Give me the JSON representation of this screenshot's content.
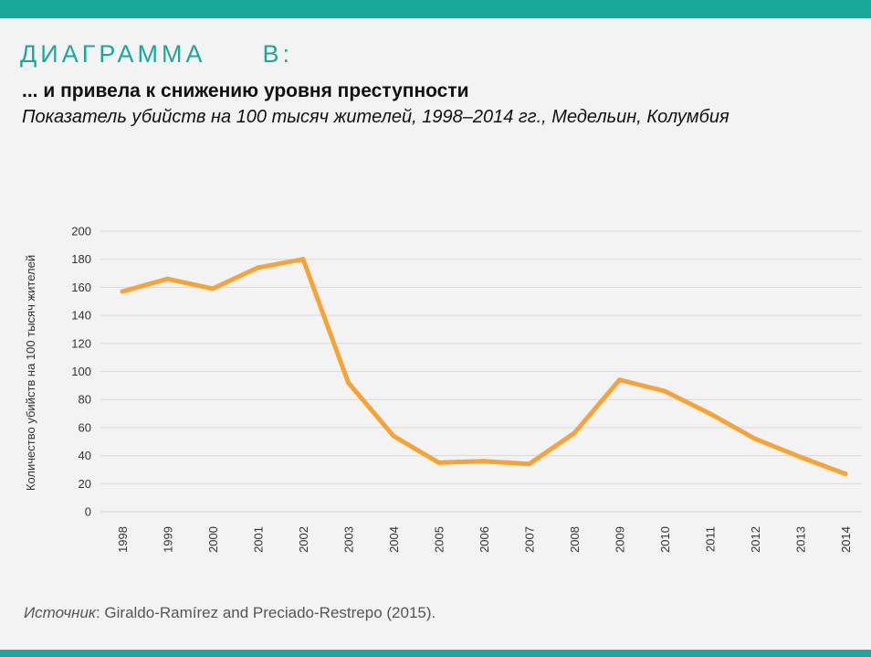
{
  "header": {
    "label": "ДИАГРАММА  В:",
    "title": "... и привела к снижению уровня преступности",
    "subtitle": "Показатель убийств на 100 тысяч жителей, 1998–2014 гг., Медельин, Колумбия"
  },
  "source": {
    "label": "Источник",
    "text": ": Giraldo-Ramírez and Preciado-Restrepo (2015)."
  },
  "colors": {
    "accent": "#1aa89a",
    "line": "#f5a43a",
    "grid": "#d9d9d9",
    "tick_text": "#333333"
  },
  "chart_data": {
    "type": "line",
    "title": "Показатель убийств на 100 тысяч жителей, 1998–2014 гг., Медельин, Колумбия",
    "xlabel": "",
    "ylabel": "Количество убийств на 100 тысяч жителей",
    "ylim": [
      0,
      200
    ],
    "yticks": [
      0,
      20,
      40,
      60,
      80,
      100,
      120,
      140,
      160,
      180,
      200
    ],
    "grid": true,
    "x": [
      "1998",
      "1999",
      "2000",
      "2001",
      "2002",
      "2003",
      "2004",
      "2005",
      "2006",
      "2007",
      "2008",
      "2009",
      "2010",
      "2011",
      "2012",
      "2013",
      "2014"
    ],
    "series": [
      {
        "name": "Показатель убийств",
        "values": [
          157,
          166,
          159,
          174,
          180,
          92,
          54,
          35,
          36,
          34,
          56,
          94,
          86,
          70,
          52,
          39,
          27
        ]
      }
    ]
  }
}
